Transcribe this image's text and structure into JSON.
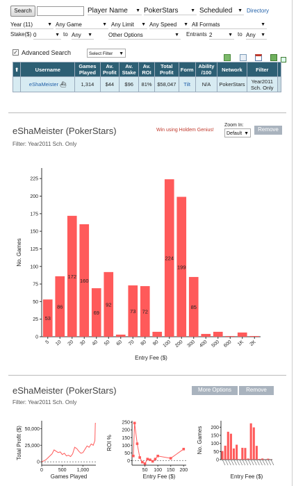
{
  "toolbar": {
    "search_label": "Search",
    "search_value": "",
    "search_type": "Player Name",
    "network": "PokerStars",
    "scheduled": "Scheduled",
    "directory_label": "Directory"
  },
  "filters": {
    "year": "Year (11)",
    "game": "Any Game",
    "limit": "Any Limit",
    "speed": "Any Speed",
    "formats": "All Formats",
    "stake_label": "Stake($)",
    "stake_from": "0",
    "to1": "to",
    "stake_to": "Any",
    "other_options": "Other Options",
    "entrants_label": "Entrants",
    "entrants_from": "2",
    "to2": "to",
    "entrants_to": "Any"
  },
  "advanced": {
    "checkbox_label": "Advanced Search",
    "select_filter": "Select Filter"
  },
  "results": {
    "headers": [
      "Username",
      "Games Played",
      "Av. Profit",
      "Av. Stake",
      "Av. ROI",
      "Total Profit",
      "Form",
      "Ability /100",
      "Network",
      "Filter"
    ],
    "row": {
      "username": "eShaMeister",
      "games_played": "1,314",
      "av_profit": "$44",
      "av_stake": "$96",
      "av_roi": "81%",
      "total_profit": "$58,047",
      "form": "Tilt",
      "ability": "N/A",
      "network": "PokerStars",
      "filter": "Year2011 Sch. Only"
    }
  },
  "panel1": {
    "title": "eShaMeister (PokerStars)",
    "promo": "Win using Holdem Genius!",
    "zoom_label": "Zoom In:",
    "zoom_value": "Default",
    "remove_label": "Remove",
    "filter_text": "Filter: Year2011 Sch. Only"
  },
  "panel2": {
    "title": "eShaMeister (PokerStars)",
    "more_options_label": "More Options",
    "remove_label": "Remove",
    "filter_text": "Filter: Year2011 Sch. Only"
  },
  "chart_data": [
    {
      "type": "bar",
      "categories": [
        "5",
        "10",
        "20",
        "30",
        "40",
        "50",
        "60",
        "70",
        "80",
        "90",
        "100",
        "200",
        "300",
        "400",
        "500",
        "600",
        "1K",
        "2K"
      ],
      "values": [
        53,
        86,
        172,
        160,
        69,
        92,
        3,
        73,
        72,
        7,
        224,
        199,
        85,
        4,
        7,
        1,
        6,
        1
      ],
      "data_labels": [
        "53",
        "86",
        "172",
        "160",
        "69",
        "92",
        "",
        "73",
        "72",
        "",
        "224",
        "199",
        "85",
        "",
        "",
        "",
        "",
        ""
      ],
      "title": "",
      "xlabel": "Entry Fee ($)",
      "ylabel": "No. Games",
      "ylim": [
        0,
        240
      ],
      "yticks": [
        0,
        25,
        50,
        75,
        100,
        125,
        150,
        175,
        200,
        225
      ],
      "color": "#ff5a5a",
      "grid": false
    },
    {
      "type": "line",
      "title": "",
      "xlabel": "Games Played",
      "ylabel": "Total Profit ($)",
      "xlim": [
        0,
        1314
      ],
      "ylim": [
        -5000,
        62000
      ],
      "xticks": [
        0,
        500,
        1000
      ],
      "xtick_labels": [
        "0",
        "500",
        "1,000"
      ],
      "yticks": [
        0,
        25000,
        50000
      ],
      "ytick_labels": [
        "0",
        "25,000",
        "50,000"
      ],
      "x": [
        0,
        50,
        100,
        150,
        200,
        250,
        300,
        350,
        400,
        450,
        500,
        550,
        600,
        650,
        700,
        750,
        800,
        850,
        900,
        950,
        1000,
        1050,
        1100,
        1150,
        1200,
        1250,
        1290,
        1300,
        1314
      ],
      "y": [
        0,
        1500,
        3000,
        6000,
        9000,
        12000,
        18000,
        16000,
        14000,
        15000,
        11000,
        13000,
        9000,
        10000,
        8000,
        12000,
        22000,
        20000,
        16000,
        13000,
        14000,
        19000,
        24000,
        22000,
        27000,
        25000,
        32000,
        58047,
        58047
      ],
      "color": "#ff5a5a"
    },
    {
      "type": "line",
      "title": "",
      "xlabel": "Entry Fee ($)",
      "ylabel": "ROI %",
      "xlim": [
        0,
        210
      ],
      "ylim": [
        -30,
        260
      ],
      "xticks": [
        50,
        100,
        150,
        200
      ],
      "yticks": [
        0,
        50,
        100,
        150,
        200,
        250
      ],
      "x": [
        5,
        10,
        20,
        30,
        40,
        50,
        60,
        70,
        80,
        90,
        100,
        150,
        200
      ],
      "y": [
        30,
        245,
        110,
        20,
        -10,
        -20,
        10,
        5,
        -5,
        10,
        30,
        15,
        75
      ],
      "color": "#ff5a5a"
    },
    {
      "type": "bar",
      "title": "",
      "xlabel": "Entry Fee ($)",
      "ylabel": "No. Games",
      "ylim": [
        0,
        240
      ],
      "yticks": [
        0,
        50,
        100,
        150,
        200
      ],
      "values": [
        53,
        86,
        172,
        160,
        69,
        92,
        3,
        73,
        72,
        7,
        224,
        199,
        85,
        4,
        7,
        1,
        6,
        1
      ],
      "color": "#ff5a5a"
    }
  ]
}
